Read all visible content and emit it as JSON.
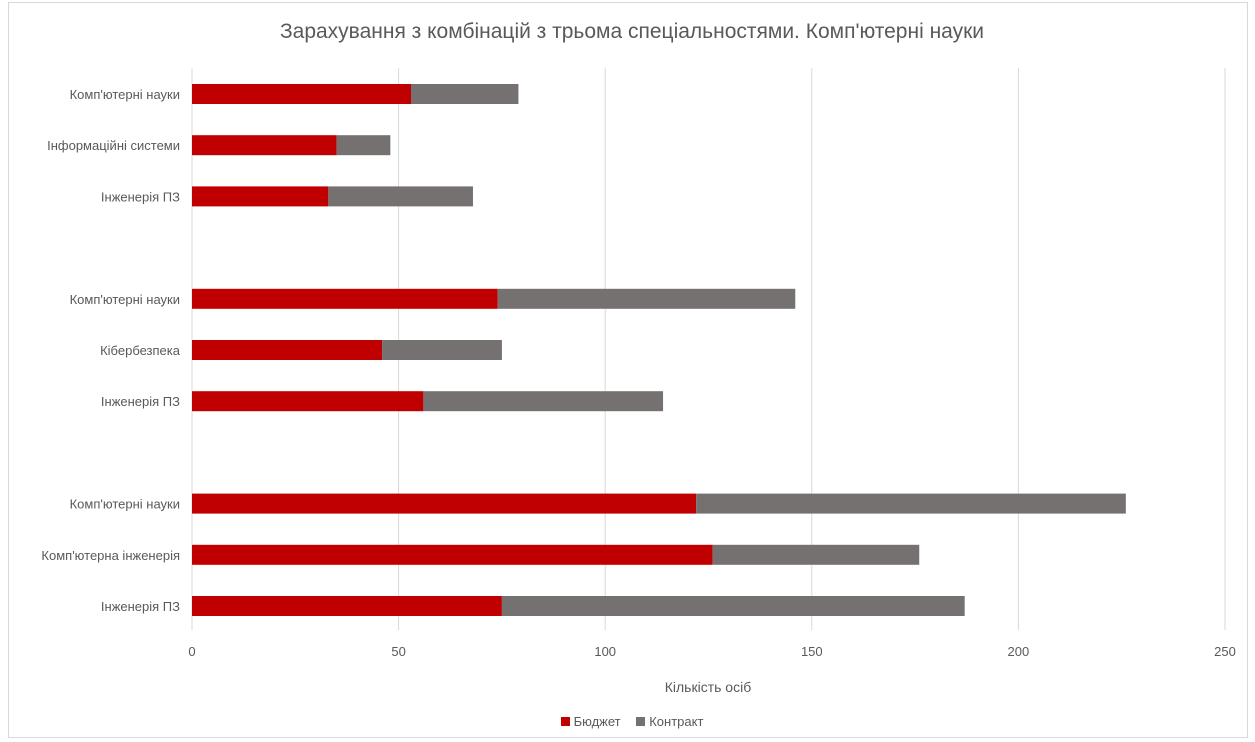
{
  "chart_data": {
    "type": "bar",
    "orientation": "horizontal",
    "stacked": true,
    "title": "Зарахування з комбінацій з трьома спеціальностями. Комп'ютерні науки",
    "xlabel": "Кількість осіб",
    "ylabel": "",
    "xlim": [
      0,
      250
    ],
    "xticks": [
      0,
      50,
      100,
      150,
      200,
      250
    ],
    "grid": "vertical",
    "legend_position": "bottom",
    "groups": [
      {
        "categories": [
          "Комп'ютерні науки",
          "Інформаційні системи",
          "Інженерія ПЗ"
        ],
        "budget": [
          53,
          35,
          33
        ],
        "contract": [
          26,
          13,
          35
        ]
      },
      {
        "categories": [
          "Комп'ютерні науки",
          "Кібербезпека",
          "Інженерія ПЗ"
        ],
        "budget": [
          74,
          46,
          56
        ],
        "contract": [
          72,
          29,
          58
        ]
      },
      {
        "categories": [
          "Комп'ютерні науки",
          "Комп'ютерна інженерія",
          "Інженерія ПЗ"
        ],
        "budget": [
          122,
          126,
          75
        ],
        "contract": [
          104,
          50,
          112
        ]
      }
    ],
    "series": [
      {
        "name": "Бюджет",
        "color": "#c00000"
      },
      {
        "name": "Контракт",
        "color": "#767171"
      }
    ]
  }
}
